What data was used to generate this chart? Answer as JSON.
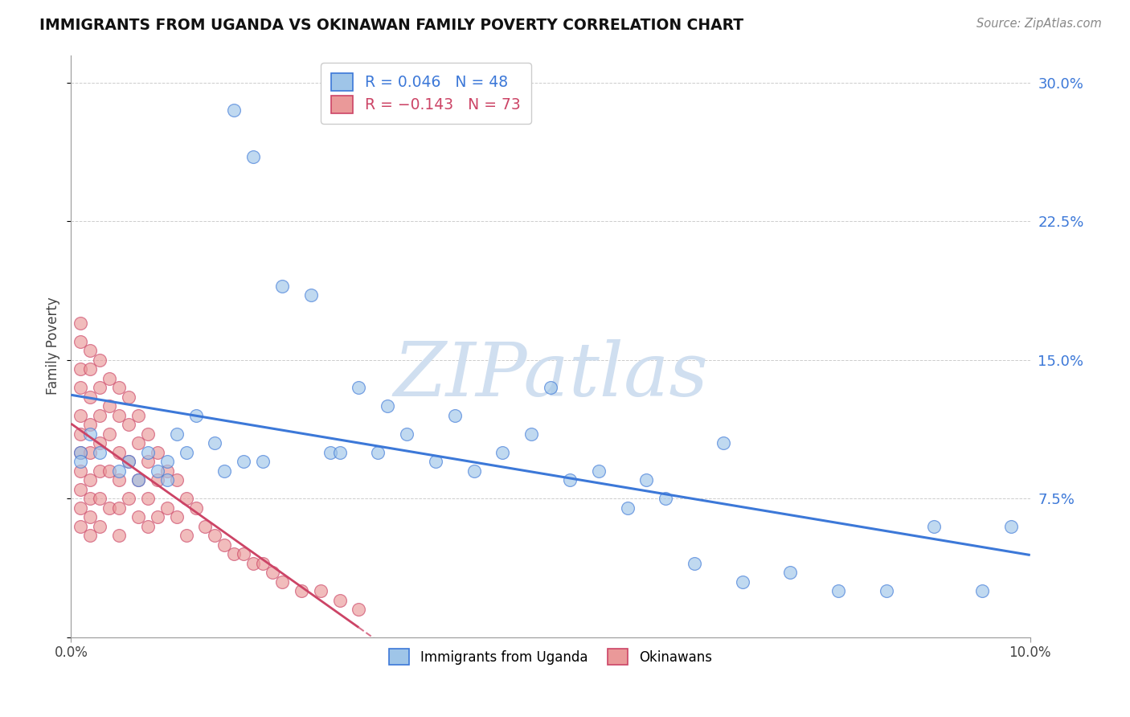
{
  "title": "IMMIGRANTS FROM UGANDA VS OKINAWAN FAMILY POVERTY CORRELATION CHART",
  "source": "Source: ZipAtlas.com",
  "ylabel": "Family Poverty",
  "right_yticks": [
    0.0,
    0.075,
    0.15,
    0.225,
    0.3
  ],
  "right_yticklabels": [
    "",
    "7.5%",
    "15.0%",
    "22.5%",
    "30.0%"
  ],
  "xlim": [
    0.0,
    0.1
  ],
  "ylim": [
    0.0,
    0.315
  ],
  "legend_r1": "R = 0.046",
  "legend_n1": "N = 48",
  "legend_r2": "R = -0.143",
  "legend_n2": "N = 73",
  "blue_color": "#9fc5e8",
  "pink_color": "#ea9999",
  "line_blue": "#3c78d8",
  "line_pink": "#cc4466",
  "watermark": "ZIPatlas",
  "watermark_color": "#d0dff0",
  "blue_x": [
    0.017,
    0.019,
    0.001,
    0.001,
    0.002,
    0.003,
    0.005,
    0.006,
    0.007,
    0.008,
    0.009,
    0.01,
    0.01,
    0.011,
    0.012,
    0.013,
    0.015,
    0.016,
    0.018,
    0.02,
    0.022,
    0.025,
    0.027,
    0.028,
    0.03,
    0.032,
    0.033,
    0.035,
    0.038,
    0.04,
    0.042,
    0.045,
    0.048,
    0.05,
    0.052,
    0.055,
    0.058,
    0.06,
    0.062,
    0.065,
    0.068,
    0.07,
    0.075,
    0.08,
    0.085,
    0.09,
    0.095,
    0.098
  ],
  "blue_y": [
    0.285,
    0.26,
    0.1,
    0.095,
    0.11,
    0.1,
    0.09,
    0.095,
    0.085,
    0.1,
    0.09,
    0.095,
    0.085,
    0.11,
    0.1,
    0.12,
    0.105,
    0.09,
    0.095,
    0.095,
    0.19,
    0.185,
    0.1,
    0.1,
    0.135,
    0.1,
    0.125,
    0.11,
    0.095,
    0.12,
    0.09,
    0.1,
    0.11,
    0.135,
    0.085,
    0.09,
    0.07,
    0.085,
    0.075,
    0.04,
    0.105,
    0.03,
    0.035,
    0.025,
    0.025,
    0.06,
    0.025,
    0.06
  ],
  "pink_x": [
    0.001,
    0.001,
    0.001,
    0.001,
    0.001,
    0.001,
    0.001,
    0.001,
    0.001,
    0.001,
    0.001,
    0.002,
    0.002,
    0.002,
    0.002,
    0.002,
    0.002,
    0.002,
    0.002,
    0.002,
    0.003,
    0.003,
    0.003,
    0.003,
    0.003,
    0.003,
    0.003,
    0.004,
    0.004,
    0.004,
    0.004,
    0.004,
    0.005,
    0.005,
    0.005,
    0.005,
    0.005,
    0.005,
    0.006,
    0.006,
    0.006,
    0.006,
    0.007,
    0.007,
    0.007,
    0.007,
    0.008,
    0.008,
    0.008,
    0.008,
    0.009,
    0.009,
    0.009,
    0.01,
    0.01,
    0.011,
    0.011,
    0.012,
    0.012,
    0.013,
    0.014,
    0.015,
    0.016,
    0.017,
    0.018,
    0.019,
    0.02,
    0.021,
    0.022,
    0.024,
    0.026,
    0.028,
    0.03
  ],
  "pink_y": [
    0.17,
    0.16,
    0.145,
    0.135,
    0.12,
    0.11,
    0.1,
    0.09,
    0.08,
    0.07,
    0.06,
    0.155,
    0.145,
    0.13,
    0.115,
    0.1,
    0.085,
    0.075,
    0.065,
    0.055,
    0.15,
    0.135,
    0.12,
    0.105,
    0.09,
    0.075,
    0.06,
    0.14,
    0.125,
    0.11,
    0.09,
    0.07,
    0.135,
    0.12,
    0.1,
    0.085,
    0.07,
    0.055,
    0.13,
    0.115,
    0.095,
    0.075,
    0.12,
    0.105,
    0.085,
    0.065,
    0.11,
    0.095,
    0.075,
    0.06,
    0.1,
    0.085,
    0.065,
    0.09,
    0.07,
    0.085,
    0.065,
    0.075,
    0.055,
    0.07,
    0.06,
    0.055,
    0.05,
    0.045,
    0.045,
    0.04,
    0.04,
    0.035,
    0.03,
    0.025,
    0.025,
    0.02,
    0.015
  ]
}
